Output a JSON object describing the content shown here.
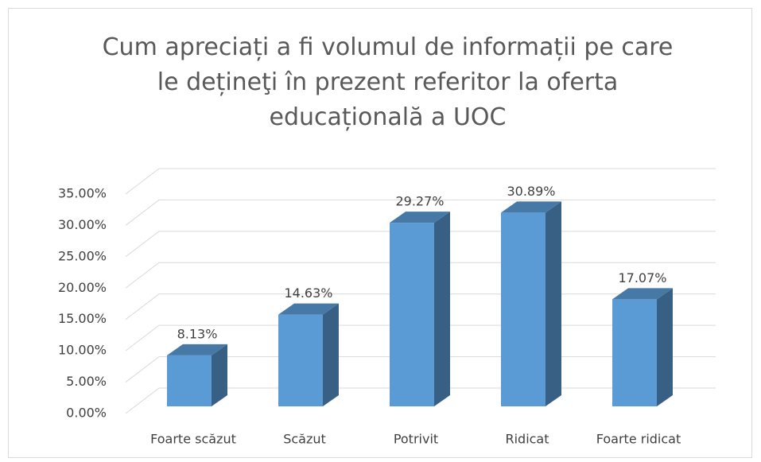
{
  "chart_data": {
    "type": "bar3d",
    "title": "Cum apreciați a fi volumul de informații pe care le dețineţi în prezent referitor la oferta educațională a UOC",
    "categories": [
      "Foarte scăzut",
      "Scăzut",
      "Potrivit",
      "Ridicat",
      "Foarte ridicat"
    ],
    "values": [
      8.13,
      14.63,
      29.27,
      30.89,
      17.07
    ],
    "value_labels": [
      "8.13%",
      "14.63%",
      "29.27%",
      "30.89%",
      "17.07%"
    ],
    "color": "#5b9bd5",
    "ylim": [
      0,
      35
    ],
    "yticks": [
      {
        "value": 0,
        "label": "0.00%"
      },
      {
        "value": 5,
        "label": "5.00%"
      },
      {
        "value": 10,
        "label": "10.00%"
      },
      {
        "value": 15,
        "label": "15.00%"
      },
      {
        "value": 20,
        "label": "20.00%"
      },
      {
        "value": 25,
        "label": "25.00%"
      },
      {
        "value": 30,
        "label": "30.00%"
      },
      {
        "value": 35,
        "label": "35.00%"
      }
    ],
    "grid": true
  }
}
